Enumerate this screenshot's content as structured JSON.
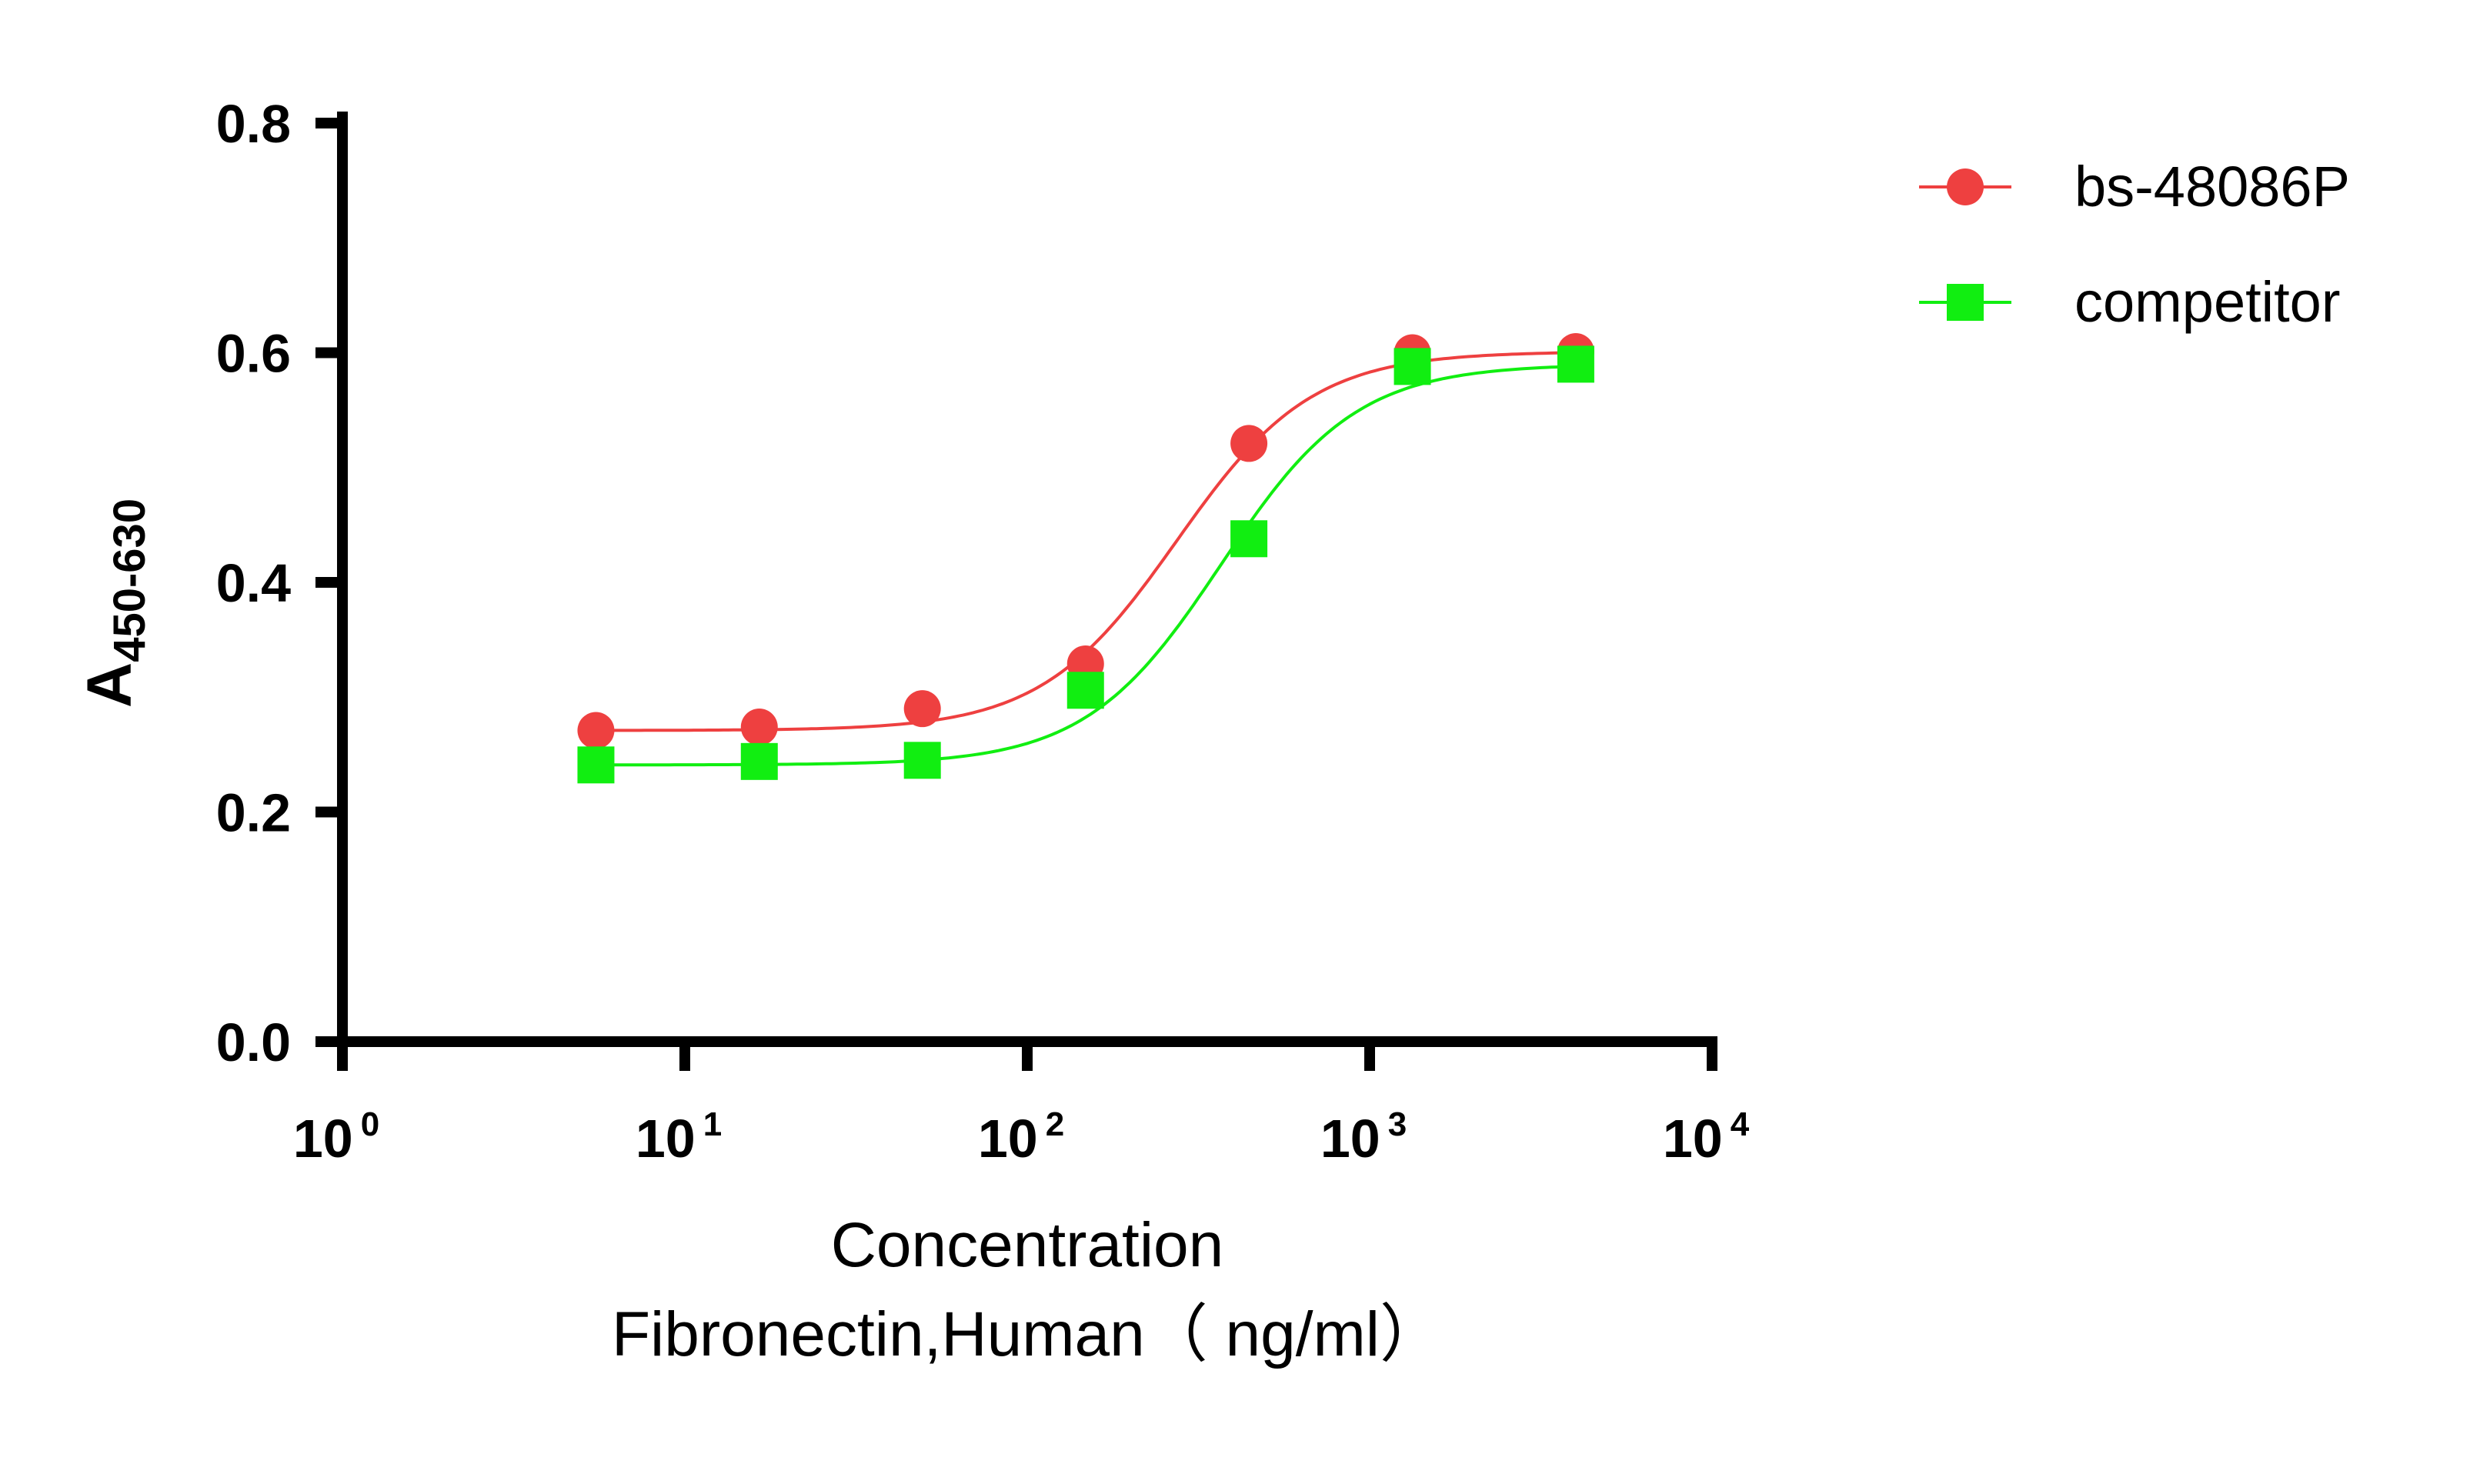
{
  "chart_data": {
    "type": "scatter",
    "xscale": "log",
    "xlim": [
      1,
      10000
    ],
    "ylim": [
      0,
      0.8
    ],
    "xticks": [
      {
        "base": "10",
        "exp": "0"
      },
      {
        "base": "10",
        "exp": "1"
      },
      {
        "base": "10",
        "exp": "2"
      },
      {
        "base": "10",
        "exp": "3"
      },
      {
        "base": "10",
        "exp": "4"
      }
    ],
    "yticks": [
      "0.0",
      "0.2",
      "0.4",
      "0.6",
      "0.8"
    ],
    "ylabel": {
      "main": "A",
      "sub": "450-630"
    },
    "xlabel": [
      "Concentration",
      "Fibronectin,Human（ ng/ml）"
    ],
    "legend_position": "top-right",
    "grid": false,
    "series": [
      {
        "name": "bs-48086P",
        "color": "#ee4040",
        "marker": "circle",
        "fit_curve": true,
        "x": [
          5.5,
          16.5,
          49.4,
          148,
          444,
          1333,
          4000
        ],
        "y": [
          0.271,
          0.274,
          0.29,
          0.329,
          0.521,
          0.6,
          0.601
        ]
      },
      {
        "name": "competitor",
        "color": "#11ee11",
        "marker": "square",
        "fit_curve": true,
        "x": [
          5.5,
          16.5,
          49.4,
          148,
          444,
          1333,
          4000
        ],
        "y": [
          0.241,
          0.244,
          0.245,
          0.306,
          0.438,
          0.588,
          0.59
        ]
      }
    ]
  }
}
